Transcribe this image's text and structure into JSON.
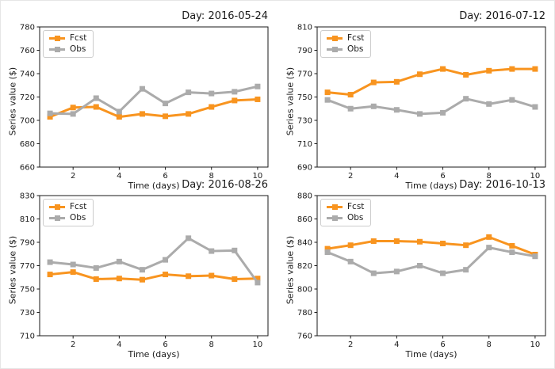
{
  "chart_data": [
    {
      "type": "line",
      "title": "Day: 2016-05-24",
      "xlabel": "Time (days)",
      "ylabel": "Series value ($)",
      "x": [
        1,
        2,
        3,
        4,
        5,
        6,
        7,
        8,
        9,
        10
      ],
      "xticks": [
        2,
        4,
        6,
        8,
        10
      ],
      "xlim": [
        0.55,
        10.45
      ],
      "ylim": [
        660,
        780
      ],
      "yticks": [
        660,
        680,
        700,
        720,
        740,
        760,
        780
      ],
      "grid": false,
      "legend_position": "upper left",
      "series": [
        {
          "name": "Fcst",
          "color": "#F8941F",
          "marker": "square",
          "values": [
            703,
            711,
            711.5,
            703,
            705.5,
            703.5,
            705.5,
            711.5,
            717,
            718
          ]
        },
        {
          "name": "Obs",
          "color": "#ABABAB",
          "marker": "square",
          "values": [
            706,
            705.5,
            719,
            707.5,
            727,
            714.5,
            724,
            723,
            724.5,
            729
          ]
        }
      ]
    },
    {
      "type": "line",
      "title": "Day: 2016-07-12",
      "xlabel": "Time (days)",
      "ylabel": "Series value ($)",
      "x": [
        1,
        2,
        3,
        4,
        5,
        6,
        7,
        8,
        9,
        10
      ],
      "xticks": [
        2,
        4,
        6,
        8,
        10
      ],
      "xlim": [
        0.55,
        10.45
      ],
      "ylim": [
        690,
        810
      ],
      "yticks": [
        690,
        710,
        730,
        750,
        770,
        790,
        810
      ],
      "grid": false,
      "legend_position": "upper left",
      "series": [
        {
          "name": "Fcst",
          "color": "#F8941F",
          "marker": "square",
          "values": [
            754,
            752,
            762.5,
            763,
            769.5,
            774,
            769,
            772.5,
            774,
            774
          ]
        },
        {
          "name": "Obs",
          "color": "#ABABAB",
          "marker": "square",
          "values": [
            747.5,
            740,
            742,
            739,
            735.5,
            736.5,
            748.5,
            744,
            747.5,
            741.5
          ]
        }
      ]
    },
    {
      "type": "line",
      "title": "Day: 2016-08-26",
      "xlabel": "Time (days)",
      "ylabel": "Series value ($)",
      "x": [
        1,
        2,
        3,
        4,
        5,
        6,
        7,
        8,
        9,
        10
      ],
      "xticks": [
        2,
        4,
        6,
        8,
        10
      ],
      "xlim": [
        0.55,
        10.45
      ],
      "ylim": [
        710,
        830
      ],
      "yticks": [
        710,
        730,
        750,
        770,
        790,
        810,
        830
      ],
      "grid": false,
      "legend_position": "upper left",
      "series": [
        {
          "name": "Fcst",
          "color": "#F8941F",
          "marker": "square",
          "values": [
            762.5,
            764.5,
            758.5,
            759,
            758,
            762.5,
            761,
            761.5,
            758.5,
            759
          ]
        },
        {
          "name": "Obs",
          "color": "#ABABAB",
          "marker": "square",
          "values": [
            773,
            771,
            768,
            773.5,
            766.5,
            775,
            793.5,
            782.5,
            783,
            755.5
          ]
        }
      ]
    },
    {
      "type": "line",
      "title": "Day: 2016-10-13",
      "xlabel": "Time (days)",
      "ylabel": "Series value ($)",
      "x": [
        1,
        2,
        3,
        4,
        5,
        6,
        7,
        8,
        9,
        10
      ],
      "xticks": [
        2,
        4,
        6,
        8,
        10
      ],
      "xlim": [
        0.55,
        10.45
      ],
      "ylim": [
        760,
        880
      ],
      "yticks": [
        760,
        780,
        800,
        820,
        840,
        860,
        880
      ],
      "grid": false,
      "legend_position": "upper left",
      "series": [
        {
          "name": "Fcst",
          "color": "#F8941F",
          "marker": "square",
          "values": [
            834.5,
            837.5,
            841,
            841,
            840.5,
            839,
            837.5,
            844.5,
            837,
            829.5
          ]
        },
        {
          "name": "Obs",
          "color": "#ABABAB",
          "marker": "square",
          "values": [
            831.5,
            823.5,
            813.5,
            815,
            820,
            813.5,
            816.5,
            835.5,
            831.5,
            828
          ]
        }
      ]
    }
  ],
  "style": {
    "fcst_color": "#F8941F",
    "obs_color": "#ABABAB",
    "spine_color": "#1a1a1a",
    "background": "#ffffff"
  }
}
